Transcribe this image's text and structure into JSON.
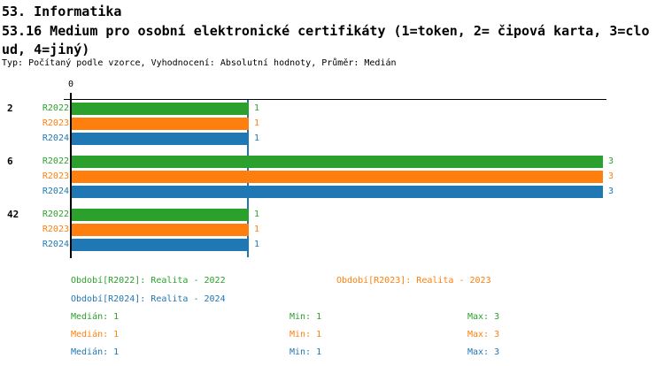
{
  "header": {
    "title_line1": "53. Informatika",
    "title_line2": "53.16 Medium pro osobní elektronické certifikáty (1=token, 2= čipová karta, 3=clo",
    "title_line3": "ud, 4=jiný)",
    "meta": "Typ: Počítaný podle vzorce, Vyhodnocení: Absolutní hodnoty, Průměr: Medián"
  },
  "chart_data": {
    "type": "bar",
    "orientation": "horizontal",
    "title": "53.16 Medium pro osobní elektronické certifikáty (1=token, 2= čipová karta, 3=cloud, 4=jiný)",
    "subtitle": "Typ: Počítaný podle vzorce, Vyhodnocení: Absolutní hodnoty, Průměr: Medián",
    "categories": [
      "2",
      "6",
      "42"
    ],
    "series": [
      {
        "name": "R2022",
        "color": "#2ca02c",
        "values": [
          1,
          3,
          1
        ]
      },
      {
        "name": "R2023",
        "color": "#ff7f0e",
        "values": [
          1,
          3,
          1
        ]
      },
      {
        "name": "R2024",
        "color": "#1f77b4",
        "values": [
          1,
          3,
          1
        ]
      }
    ],
    "xlim": [
      0,
      3.02
    ],
    "axis_tick_labels": [
      "0"
    ],
    "reference_line": {
      "value": 1,
      "color": "#1f77b4",
      "meaning": "Medián"
    },
    "grid": false,
    "legend_position": "bottom"
  },
  "legend": {
    "items": [
      {
        "label": "Období[R2022]: Realita - 2022",
        "color": "#2ca02c"
      },
      {
        "label": "Období[R2023]: Realita - 2023",
        "color": "#ff7f0e"
      },
      {
        "label": "Období[R2024]: Realita - 2024",
        "color": "#1f77b4"
      }
    ]
  },
  "stats": {
    "rows": [
      {
        "median": "Medián: 1",
        "min": "Min: 1",
        "max": "Max: 3",
        "color": "#2ca02c"
      },
      {
        "median": "Medián: 1",
        "min": "Min: 1",
        "max": "Max: 3",
        "color": "#ff7f0e"
      },
      {
        "median": "Medián: 1",
        "min": "Min: 1",
        "max": "Max: 3",
        "color": "#1f77b4"
      }
    ]
  }
}
